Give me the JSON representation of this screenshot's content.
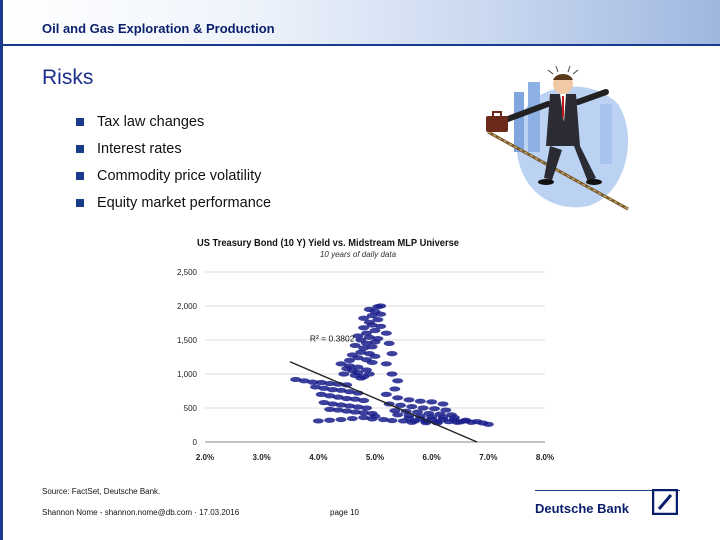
{
  "header": {
    "title": "Oil and Gas Exploration & Production"
  },
  "slide": {
    "title": "Risks",
    "bullets": [
      "Tax law changes",
      "Interest rates",
      "Commodity price volatility",
      "Equity market performance"
    ]
  },
  "chart_data": {
    "type": "scatter",
    "title": "US Treasury Bond (10 Y) Yield vs. Midstream MLP Universe",
    "subtitle": "10 years of daily data",
    "xlabel": "",
    "ylabel": "",
    "xlim": [
      0.02,
      0.08
    ],
    "ylim": [
      0,
      2500
    ],
    "x_ticks": [
      "2.0%",
      "3.0%",
      "4.0%",
      "5.0%",
      "6.0%",
      "7.0%",
      "8.0%"
    ],
    "y_ticks": [
      "0",
      "500",
      "1,000",
      "1,500",
      "2,000",
      "2,500"
    ],
    "annotation": "R² = 0.3802",
    "trendline": [
      [
        0.035,
        1180
      ],
      [
        0.068,
        0
      ]
    ],
    "points": [
      [
        0.036,
        920
      ],
      [
        0.0375,
        900
      ],
      [
        0.039,
        880
      ],
      [
        0.0405,
        875
      ],
      [
        0.042,
        860
      ],
      [
        0.0435,
        850
      ],
      [
        0.045,
        840
      ],
      [
        0.0395,
        810
      ],
      [
        0.041,
        790
      ],
      [
        0.0425,
        770
      ],
      [
        0.044,
        760
      ],
      [
        0.0455,
        740
      ],
      [
        0.047,
        720
      ],
      [
        0.0405,
        700
      ],
      [
        0.042,
        680
      ],
      [
        0.0435,
        660
      ],
      [
        0.045,
        640
      ],
      [
        0.0465,
        630
      ],
      [
        0.048,
        610
      ],
      [
        0.041,
        580
      ],
      [
        0.0425,
        560
      ],
      [
        0.044,
        545
      ],
      [
        0.0455,
        530
      ],
      [
        0.047,
        515
      ],
      [
        0.0485,
        500
      ],
      [
        0.042,
        480
      ],
      [
        0.0435,
        470
      ],
      [
        0.045,
        455
      ],
      [
        0.0465,
        440
      ],
      [
        0.048,
        430
      ],
      [
        0.0495,
        420
      ],
      [
        0.045,
        1080
      ],
      [
        0.046,
        1050
      ],
      [
        0.047,
        1020
      ],
      [
        0.0445,
        1000
      ],
      [
        0.0465,
        980
      ],
      [
        0.048,
        960
      ],
      [
        0.0455,
        1120
      ],
      [
        0.047,
        1100
      ],
      [
        0.0485,
        1060
      ],
      [
        0.049,
        1000
      ],
      [
        0.0475,
        940
      ],
      [
        0.044,
        1150
      ],
      [
        0.0455,
        1200
      ],
      [
        0.047,
        1240
      ],
      [
        0.0485,
        1210
      ],
      [
        0.0495,
        1170
      ],
      [
        0.046,
        1280
      ],
      [
        0.0475,
        1320
      ],
      [
        0.049,
        1300
      ],
      [
        0.05,
        1260
      ],
      [
        0.048,
        1380
      ],
      [
        0.0495,
        1400
      ],
      [
        0.0465,
        1420
      ],
      [
        0.0485,
        1450
      ],
      [
        0.05,
        1470
      ],
      [
        0.0475,
        1500
      ],
      [
        0.049,
        1540
      ],
      [
        0.0505,
        1520
      ],
      [
        0.047,
        1560
      ],
      [
        0.0485,
        1600
      ],
      [
        0.05,
        1640
      ],
      [
        0.048,
        1680
      ],
      [
        0.0495,
        1720
      ],
      [
        0.051,
        1700
      ],
      [
        0.049,
        1760
      ],
      [
        0.0505,
        1800
      ],
      [
        0.048,
        1820
      ],
      [
        0.0495,
        1860
      ],
      [
        0.051,
        1880
      ],
      [
        0.05,
        1920
      ],
      [
        0.049,
        1950
      ],
      [
        0.0505,
        1990
      ],
      [
        0.051,
        2000
      ],
      [
        0.052,
        1600
      ],
      [
        0.0525,
        1450
      ],
      [
        0.053,
        1300
      ],
      [
        0.052,
        1150
      ],
      [
        0.053,
        1000
      ],
      [
        0.054,
        900
      ],
      [
        0.0535,
        780
      ],
      [
        0.052,
        700
      ],
      [
        0.054,
        650
      ],
      [
        0.056,
        620
      ],
      [
        0.058,
        600
      ],
      [
        0.06,
        590
      ],
      [
        0.062,
        560
      ],
      [
        0.0525,
        560
      ],
      [
        0.0545,
        540
      ],
      [
        0.0565,
        520
      ],
      [
        0.0585,
        500
      ],
      [
        0.0605,
        490
      ],
      [
        0.0625,
        470
      ],
      [
        0.0535,
        460
      ],
      [
        0.0555,
        450
      ],
      [
        0.0575,
        440
      ],
      [
        0.0595,
        420
      ],
      [
        0.0615,
        410
      ],
      [
        0.0635,
        400
      ],
      [
        0.054,
        400
      ],
      [
        0.056,
        390
      ],
      [
        0.058,
        380
      ],
      [
        0.06,
        370
      ],
      [
        0.062,
        365
      ],
      [
        0.064,
        360
      ],
      [
        0.056,
        350
      ],
      [
        0.058,
        340
      ],
      [
        0.06,
        335
      ],
      [
        0.062,
        330
      ],
      [
        0.064,
        325
      ],
      [
        0.066,
        320
      ],
      [
        0.057,
        310
      ],
      [
        0.059,
        305
      ],
      [
        0.061,
        300
      ],
      [
        0.063,
        300
      ],
      [
        0.065,
        295
      ],
      [
        0.067,
        290
      ],
      [
        0.05,
        380
      ],
      [
        0.048,
        360
      ],
      [
        0.046,
        345
      ],
      [
        0.044,
        330
      ],
      [
        0.042,
        320
      ],
      [
        0.04,
        310
      ],
      [
        0.0495,
        340
      ],
      [
        0.0515,
        330
      ],
      [
        0.053,
        315
      ],
      [
        0.055,
        310
      ],
      [
        0.069,
        280
      ],
      [
        0.07,
        260
      ],
      [
        0.068,
        300
      ],
      [
        0.066,
        310
      ],
      [
        0.0645,
        290
      ],
      [
        0.061,
        280
      ],
      [
        0.059,
        285
      ],
      [
        0.0565,
        290
      ]
    ]
  },
  "footer": {
    "source": "Source: FactSet, Deutsche Bank.",
    "author": "Shannon Nome - shannon.nome@db.com · 17.03.2016",
    "page": "page 10",
    "brand": "Deutsche Bank"
  }
}
